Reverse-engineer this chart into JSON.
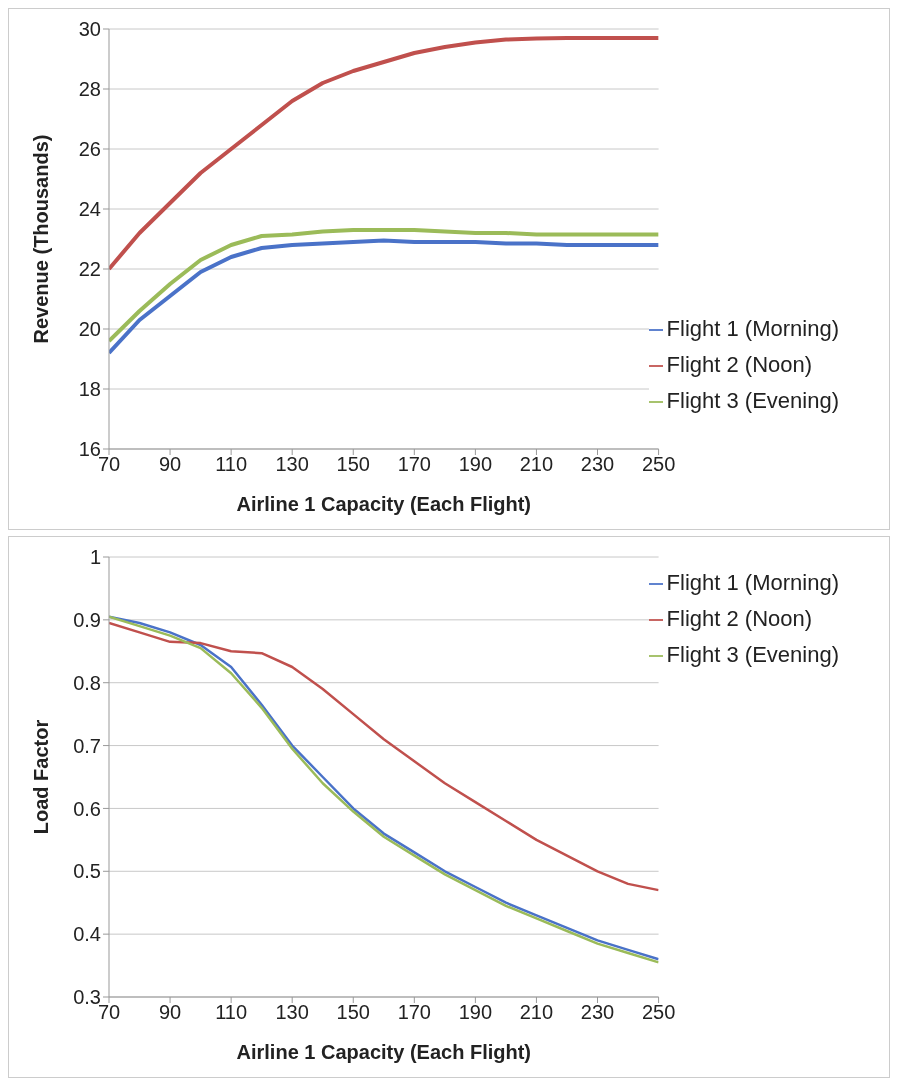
{
  "chart_data": [
    {
      "type": "line",
      "xlabel": "Airline 1 Capacity (Each Flight)",
      "ylabel": "Revenue (Thousands)",
      "x": [
        70,
        80,
        90,
        100,
        110,
        120,
        130,
        140,
        150,
        160,
        170,
        180,
        190,
        200,
        210,
        220,
        230,
        240,
        250
      ],
      "xlim": [
        70,
        250
      ],
      "xticks": [
        70,
        90,
        110,
        130,
        150,
        170,
        190,
        210,
        230,
        250
      ],
      "ylim": [
        16,
        30
      ],
      "yticks": [
        16,
        18,
        20,
        22,
        24,
        26,
        28,
        30
      ],
      "grid": "y",
      "legend": "bottom right",
      "marker": "none",
      "line_style": "solid",
      "series": [
        {
          "name": "Flight 1 (Morning)",
          "color": "#4a72c8",
          "values": [
            19.2,
            20.3,
            21.1,
            21.9,
            22.4,
            22.7,
            22.8,
            22.85,
            22.9,
            22.95,
            22.9,
            22.9,
            22.9,
            22.85,
            22.85,
            22.8,
            22.8,
            22.8,
            22.8
          ]
        },
        {
          "name": "Flight 2 (Noon)",
          "color": "#c0504d",
          "values": [
            22.0,
            23.2,
            24.2,
            25.2,
            26.0,
            26.8,
            27.6,
            28.2,
            28.6,
            28.9,
            29.2,
            29.4,
            29.55,
            29.65,
            29.68,
            29.7,
            29.7,
            29.7,
            29.7
          ]
        },
        {
          "name": "Flight 3 (Evening)",
          "color": "#9bbb59",
          "values": [
            19.6,
            20.6,
            21.5,
            22.3,
            22.8,
            23.1,
            23.15,
            23.25,
            23.3,
            23.3,
            23.3,
            23.25,
            23.2,
            23.2,
            23.15,
            23.15,
            23.15,
            23.15,
            23.15
          ]
        }
      ]
    },
    {
      "type": "line",
      "xlabel": "Airline 1 Capacity (Each Flight)",
      "ylabel": "Load Factor",
      "x": [
        70,
        80,
        90,
        100,
        110,
        120,
        130,
        140,
        150,
        160,
        170,
        180,
        190,
        200,
        210,
        220,
        230,
        240,
        250
      ],
      "xlim": [
        70,
        250
      ],
      "xticks": [
        70,
        90,
        110,
        130,
        150,
        170,
        190,
        210,
        230,
        250
      ],
      "ylim": [
        0.3,
        1
      ],
      "yticks": [
        0.3,
        0.4,
        0.5,
        0.6,
        0.7,
        0.8,
        0.9,
        1
      ],
      "grid": "y",
      "legend": "top right",
      "marker": "none",
      "line_style": "solid",
      "series": [
        {
          "name": "Flight 1 (Morning)",
          "color": "#4a72c8",
          "values": [
            0.905,
            0.895,
            0.88,
            0.86,
            0.825,
            0.765,
            0.7,
            0.65,
            0.6,
            0.56,
            0.53,
            0.5,
            0.475,
            0.45,
            0.43,
            0.41,
            0.39,
            0.375,
            0.36
          ]
        },
        {
          "name": "Flight 2 (Noon)",
          "color": "#c0504d",
          "values": [
            0.895,
            0.88,
            0.865,
            0.863,
            0.85,
            0.847,
            0.825,
            0.79,
            0.75,
            0.71,
            0.675,
            0.64,
            0.61,
            0.58,
            0.55,
            0.525,
            0.5,
            0.48,
            0.47
          ]
        },
        {
          "name": "Flight 3 (Evening)",
          "color": "#9bbb59",
          "values": [
            0.905,
            0.89,
            0.875,
            0.855,
            0.815,
            0.76,
            0.695,
            0.64,
            0.595,
            0.555,
            0.525,
            0.495,
            0.47,
            0.445,
            0.425,
            0.405,
            0.385,
            0.37,
            0.355
          ]
        }
      ]
    }
  ]
}
